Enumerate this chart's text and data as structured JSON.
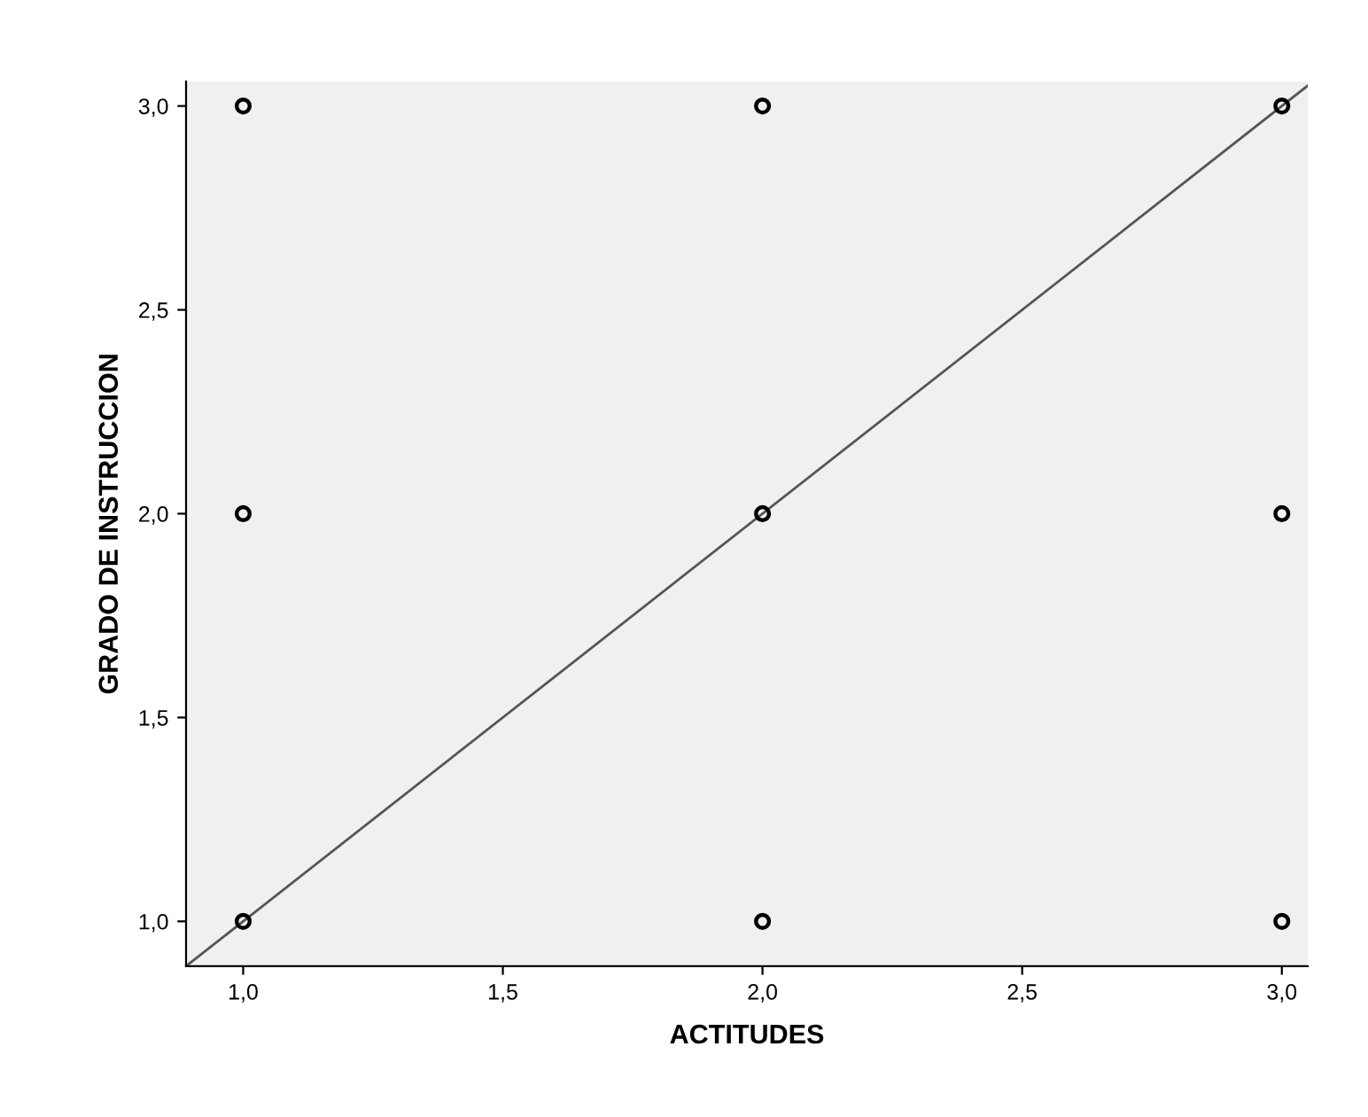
{
  "chart_data": {
    "type": "scatter",
    "xlabel": "ACTITUDES",
    "ylabel": "GRADO DE INSTRUCCION",
    "series": [
      {
        "color": "#000000",
        "x": [
          1,
          1,
          1,
          2,
          2,
          2,
          3,
          3,
          3
        ],
        "values": [
          3,
          2,
          1,
          3,
          2,
          1,
          3,
          2,
          1
        ],
        "marker": "circle"
      },
      {
        "type": "line",
        "color": "#555555",
        "x": [
          0.89,
          3.05
        ],
        "values": [
          0.89,
          3.05
        ],
        "marker": "none",
        "line_style": "solid"
      }
    ],
    "xlim": [
      0.89,
      3.05
    ],
    "ylim": [
      0.89,
      3.06
    ],
    "xticks": [
      {
        "value": 1.0,
        "label": "1,0"
      },
      {
        "value": 1.5,
        "label": "1,5"
      },
      {
        "value": 2.0,
        "label": "2,0"
      },
      {
        "value": 2.5,
        "label": "2,5"
      },
      {
        "value": 3.0,
        "label": "3,0"
      }
    ],
    "yticks": [
      {
        "value": 1.0,
        "label": "1,0"
      },
      {
        "value": 1.5,
        "label": "1,5"
      },
      {
        "value": 2.0,
        "label": "2,0"
      },
      {
        "value": 2.5,
        "label": "2,5"
      },
      {
        "value": 3.0,
        "label": "3,0"
      }
    ],
    "grid": false,
    "legend": false
  }
}
